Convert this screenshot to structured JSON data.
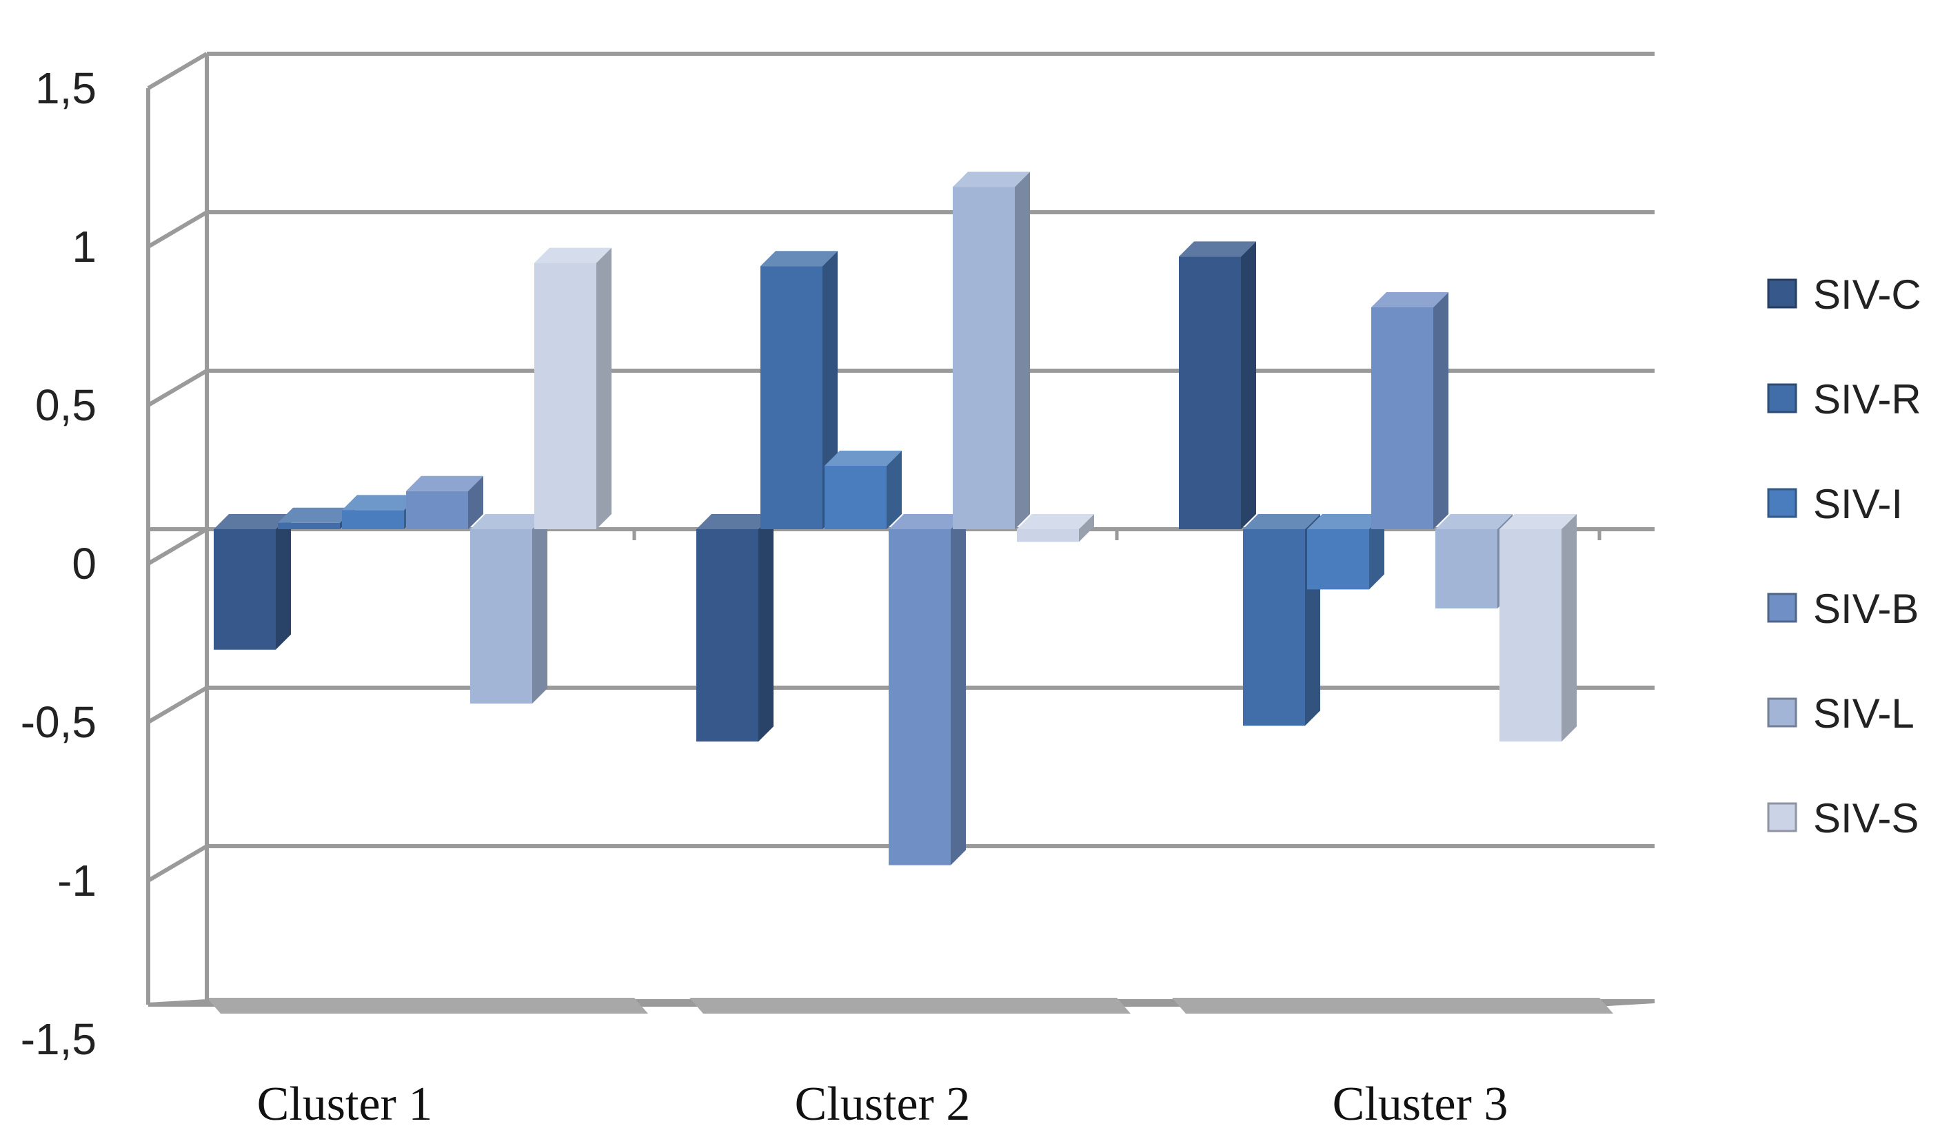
{
  "chart_data": {
    "type": "bar",
    "categories": [
      "Cluster 1",
      "Cluster 2",
      "Cluster 3"
    ],
    "series": [
      {
        "name": "SIV-C",
        "color": "#36588a",
        "values": [
          -0.38,
          -0.67,
          0.86
        ]
      },
      {
        "name": "SIV-R",
        "color": "#416ea8",
        "values": [
          0.02,
          0.83,
          -0.62
        ]
      },
      {
        "name": "SIV-I",
        "color": "#4a7dbd",
        "values": [
          0.06,
          0.2,
          -0.19
        ]
      },
      {
        "name": "SIV-B",
        "color": "#708fc4",
        "values": [
          0.12,
          -1.06,
          0.7
        ]
      },
      {
        "name": "SIV-L",
        "color": "#a3b5d6",
        "values": [
          -0.55,
          1.08,
          -0.25
        ]
      },
      {
        "name": "SIV-S",
        "color": "#cbd4e7",
        "values": [
          0.84,
          -0.04,
          -0.67
        ]
      }
    ],
    "yticks": [
      "1,5",
      "1",
      "0,5",
      "0",
      "-0,5",
      "-1",
      "-1,5"
    ],
    "ylim": [
      -1.5,
      1.5
    ],
    "grid": true,
    "legend": "right",
    "title": "",
    "xlabel": "",
    "ylabel": ""
  }
}
